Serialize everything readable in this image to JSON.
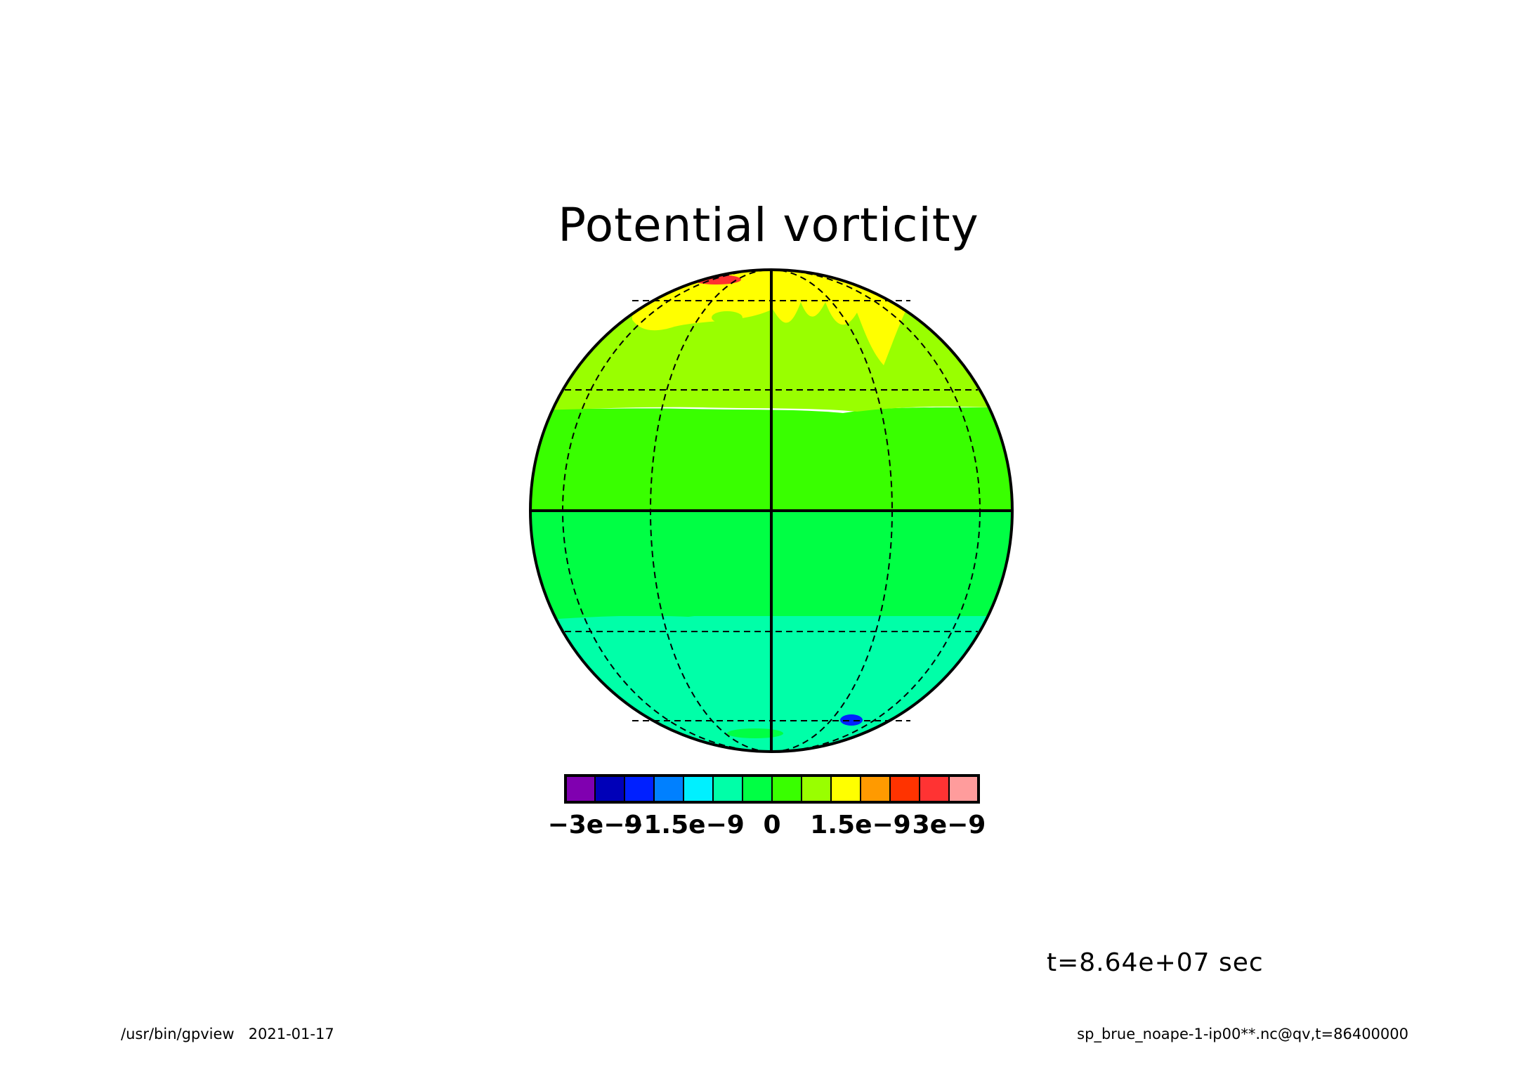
{
  "title": "Potential vorticity",
  "time_label": "t=8.64e+07 sec",
  "footer": {
    "program": "/usr/bin/gpview",
    "date": "2021-01-17",
    "source": "sp_brue_noape-1-ip00**.nc@qv,t=86400000"
  },
  "colors": {
    "bands": [
      "#00ffff",
      "#00ffa8",
      "#00ff44",
      "#39ff00",
      "#99ff00",
      "#ffff00",
      "#ff3030"
    ],
    "blue_spot": "#0020ff",
    "outline": "#000000"
  },
  "colorbar": {
    "colors": [
      "#8000b0",
      "#0000b8",
      "#0020ff",
      "#0080ff",
      "#00f0ff",
      "#00ffa8",
      "#00ff44",
      "#39ff00",
      "#99ff00",
      "#ffff00",
      "#ff9a00",
      "#ff3300",
      "#ff3333",
      "#ff9c9c"
    ],
    "tick_labels": [
      {
        "text": "−3e−9",
        "value": -3e-09
      },
      {
        "text": "−1.5e−9",
        "value": -1.5e-09
      },
      {
        "text": "0",
        "value": 0
      },
      {
        "text": "1.5e−9",
        "value": 1.5e-09
      },
      {
        "text": "3e−9",
        "value": 3e-09
      }
    ],
    "min": -3.5e-09,
    "max": 3.5e-09
  }
}
